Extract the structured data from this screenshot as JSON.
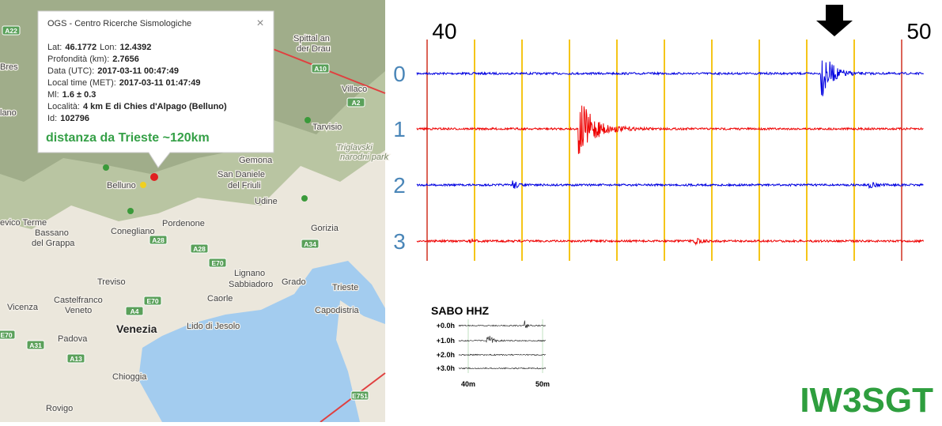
{
  "popup": {
    "title": "OGS - Centro Ricerche Sismologiche",
    "close": "×",
    "lines": [
      [
        {
          "label": "Lat:",
          "value": "46.1772"
        },
        {
          "label": "Lon:",
          "value": "12.4392"
        }
      ],
      [
        {
          "label": "Profondità (km):",
          "value": "2.7656"
        }
      ],
      [
        {
          "label": "Data (UTC):",
          "value": "2017-03-11 00:47:49"
        }
      ],
      [
        {
          "label": "Local time (MET):",
          "value": "2017-03-11 01:47:49"
        }
      ],
      [
        {
          "label": "Ml:",
          "value": "1.6 ± 0.3"
        }
      ],
      [
        {
          "label": "Località:",
          "value": "4 km E di Chies d'Alpago (Belluno)"
        }
      ],
      [
        {
          "label": "Id:",
          "value": "102796"
        }
      ]
    ],
    "note": "distanza da Trieste ~120km"
  },
  "map": {
    "places": [
      "Spittal an",
      "der Drau",
      "Villaco",
      "Tarvisio",
      "Triglavski",
      "narodni park",
      "Gemona",
      "San Daniele",
      "del Friuli",
      "Udine",
      "Belluno",
      "Pordenone",
      "Conegliano",
      "Gorizia",
      "Trieste",
      "Lignano",
      "Sabbiadoro",
      "Grado",
      "Treviso",
      "Caorle",
      "Bassano",
      "del Grappa",
      "Castelfranco",
      "Veneto",
      "Vicenza",
      "Padova",
      "Venezia",
      "Lido di Jesolo",
      "Chioggia",
      "Rovigo",
      "Capodistria",
      "Bres",
      "lano",
      "evico Terme"
    ],
    "road_shields": [
      "A22",
      "A10",
      "A2",
      "A28",
      "A28",
      "A34",
      "E70",
      "E70",
      "E70",
      "A31",
      "A13",
      "A4",
      "E751"
    ]
  },
  "seismogram": {
    "minute_labels": [
      "40",
      "50"
    ],
    "channels": [
      "0",
      "1",
      "2",
      "3"
    ]
  },
  "inset": {
    "title": "SABO HHZ",
    "rows": [
      "+0.0h",
      "+1.0h",
      "+2.0h",
      "+3.0h"
    ],
    "time_labels": [
      "40m",
      "50m"
    ]
  },
  "watermark": "IW3SGT"
}
